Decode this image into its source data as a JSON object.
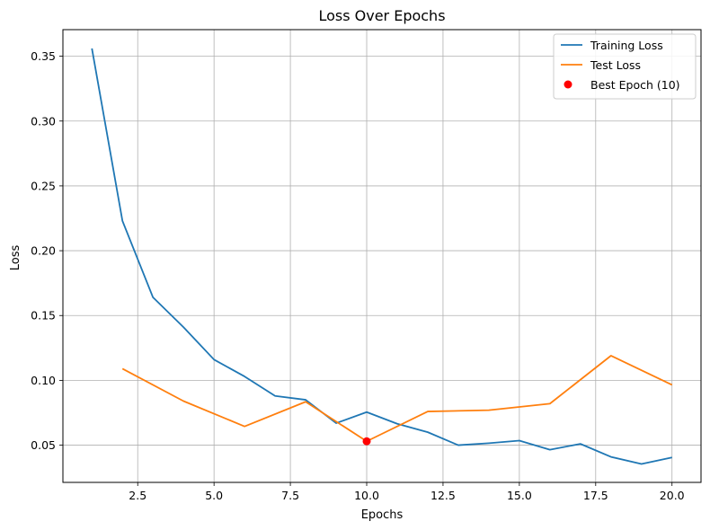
{
  "chart_data": {
    "type": "line",
    "title": "Loss Over Epochs",
    "xlabel": "Epochs",
    "ylabel": "Loss",
    "xlim": [
      0.05,
      20.95
    ],
    "ylim": [
      0.0213,
      0.3705
    ],
    "xticks": [
      2.5,
      5.0,
      7.5,
      10.0,
      12.5,
      15.0,
      17.5,
      20.0
    ],
    "xtick_labels": [
      "2.5",
      "5.0",
      "7.5",
      "10.0",
      "12.5",
      "15.0",
      "17.5",
      "20.0"
    ],
    "yticks": [
      0.05,
      0.1,
      0.15,
      0.2,
      0.25,
      0.3,
      0.35
    ],
    "ytick_labels": [
      "0.05",
      "0.10",
      "0.15",
      "0.20",
      "0.25",
      "0.30",
      "0.35"
    ],
    "grid": true,
    "legend_position": "top-right",
    "series": [
      {
        "name": "Training Loss",
        "color": "#1f77b4",
        "x": [
          1,
          2,
          3,
          4,
          5,
          6,
          7,
          8,
          9,
          10,
          11,
          12,
          13,
          14,
          15,
          16,
          17,
          18,
          19,
          20
        ],
        "values": [
          0.356,
          0.223,
          0.164,
          0.141,
          0.116,
          0.103,
          0.088,
          0.085,
          0.067,
          0.0755,
          0.0665,
          0.06,
          0.05,
          0.0515,
          0.0535,
          0.0465,
          0.051,
          0.041,
          0.0355,
          0.0405
        ]
      },
      {
        "name": "Test Loss",
        "color": "#ff7f0e",
        "x": [
          2,
          4,
          6,
          8,
          10,
          12,
          14,
          16,
          18,
          20
        ],
        "values": [
          0.109,
          0.084,
          0.0645,
          0.0835,
          0.053,
          0.076,
          0.077,
          0.082,
          0.119,
          0.0965
        ]
      }
    ],
    "highlight_point": {
      "name": "Best Epoch (10)",
      "color": "#ff0000",
      "x": 10,
      "y": 0.053
    }
  }
}
